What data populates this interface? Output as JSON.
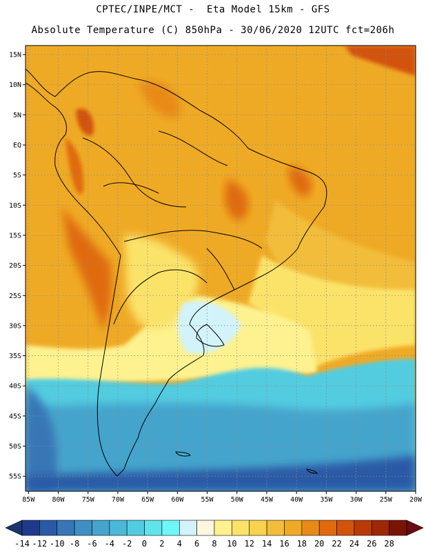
{
  "header": {
    "line1": "CPTEC/INPE/MCT -  Eta Model 15km - GFS",
    "line2": "Absolute Temperature (C) 850hPa - 30/06/2020 12UTC fct=206h"
  },
  "map": {
    "lat_labels": [
      "15N",
      "10N",
      "5N",
      "EQ",
      "5S",
      "10S",
      "15S",
      "20S",
      "25S",
      "30S",
      "35S",
      "40S",
      "45S",
      "50S",
      "55S"
    ],
    "lat_values": [
      15,
      10,
      5,
      0,
      -5,
      -10,
      -15,
      -20,
      -25,
      -30,
      -35,
      -40,
      -45,
      -50,
      -55
    ],
    "lon_labels": [
      "85W",
      "80W",
      "75W",
      "70W",
      "65W",
      "60W",
      "55W",
      "50W",
      "45W",
      "40W",
      "35W",
      "30W",
      "25W",
      "20W"
    ],
    "lon_values": [
      -85,
      -80,
      -75,
      -70,
      -65,
      -60,
      -55,
      -50,
      -45,
      -40,
      -35,
      -30,
      -25,
      -20
    ],
    "lon_range": [
      -85.5,
      -20
    ],
    "lat_range": [
      -57.5,
      16.5
    ]
  },
  "colorbar": {
    "labels": [
      "-14",
      "-12",
      "-10",
      "-8",
      "-6",
      "-4",
      "-2",
      "0",
      "2",
      "4",
      "6",
      "8",
      "10",
      "12",
      "14",
      "16",
      "18",
      "20",
      "22",
      "24",
      "26",
      "28"
    ],
    "colors": [
      "#1f3a8a",
      "#2a5aa6",
      "#3876b6",
      "#3f8fc4",
      "#44a4cc",
      "#4ab8d8",
      "#52cce0",
      "#61e3ec",
      "#6ff7f7",
      "#d2f3f9",
      "#fff6de",
      "#fdf28f",
      "#fbe36a",
      "#f9d24e",
      "#f2bd3a",
      "#efaa25",
      "#e98a18",
      "#e06a0e",
      "#d2530a",
      "#ba3a05",
      "#9f2804",
      "#7a1404"
    ],
    "under_color": "#1c3570",
    "over_color": "#6b0b15"
  }
}
